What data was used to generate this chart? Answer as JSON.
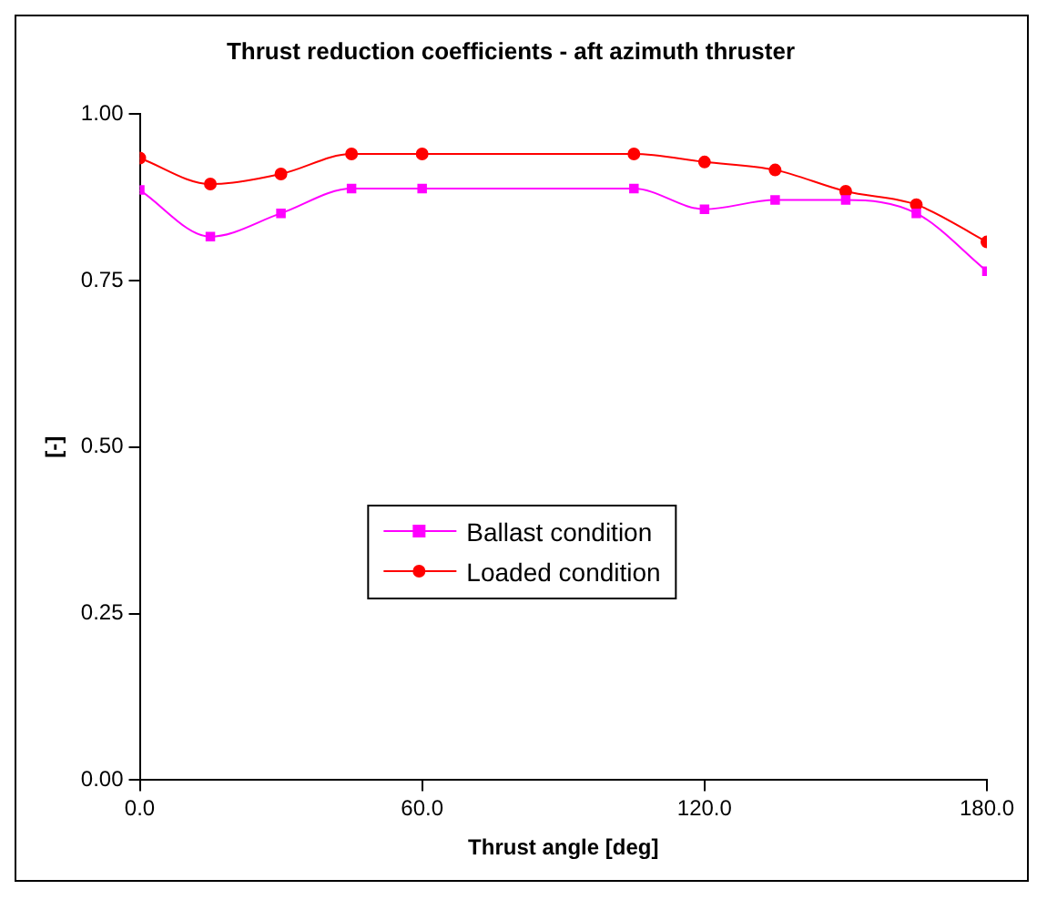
{
  "chart_data": {
    "type": "line",
    "title": "Thrust reduction coefficients - aft azimuth thruster",
    "xlabel": "Thrust angle [deg]",
    "ylabel": "[-]",
    "x": [
      0,
      15,
      30,
      45,
      60,
      105,
      120,
      135,
      150,
      165,
      180
    ],
    "series": [
      {
        "name": "Ballast condition",
        "color": "#ff00ff",
        "marker": "square",
        "values": [
          0.886,
          0.816,
          0.851,
          0.888,
          0.888,
          0.888,
          0.857,
          0.871,
          0.871,
          0.851,
          0.764
        ]
      },
      {
        "name": "Loaded condition",
        "color": "#ff0000",
        "marker": "circle",
        "values": [
          0.934,
          0.895,
          0.91,
          0.94,
          0.94,
          0.94,
          0.928,
          0.916,
          0.884,
          0.864,
          0.808
        ]
      }
    ],
    "xlim": [
      0,
      180
    ],
    "xticks": [
      {
        "value": 0,
        "label": "0.0"
      },
      {
        "value": 60,
        "label": "60.0"
      },
      {
        "value": 120,
        "label": "120.0"
      },
      {
        "value": 180,
        "label": "180.0"
      }
    ],
    "ylim": [
      0,
      1
    ],
    "yticks": [
      {
        "value": 0,
        "label": "0.00"
      },
      {
        "value": 0.25,
        "label": "0.25"
      },
      {
        "value": 0.5,
        "label": "0.50"
      },
      {
        "value": 0.75,
        "label": "0.75"
      },
      {
        "value": 1,
        "label": "1.00"
      }
    ],
    "grid": false,
    "legend": "center",
    "line_style": "solid"
  }
}
